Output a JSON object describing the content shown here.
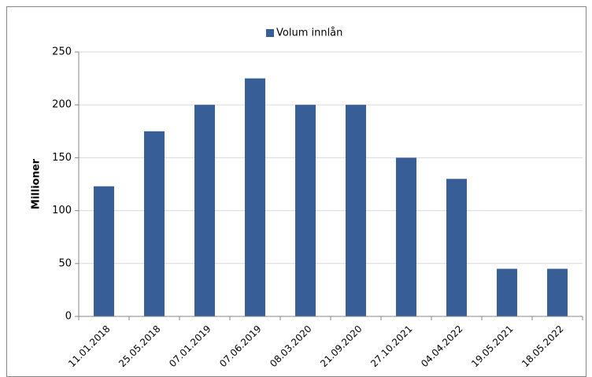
{
  "chart_data": {
    "type": "bar",
    "y_label": "Millioner",
    "categories": [
      "11.01.2018",
      "25.05.2018",
      "07.01.2019",
      "07.06.2019",
      "08.03.2020",
      "21.09.2020",
      "27.10.2021",
      "04.04.2022",
      "19.05.2021",
      "18.05.2022"
    ],
    "series": [
      {
        "name": "Volum innlån",
        "color": "#375e97",
        "values": [
          123,
          175,
          200,
          225,
          200,
          200,
          150,
          130,
          45,
          45
        ]
      }
    ],
    "ylim": [
      0,
      250
    ],
    "yticks": [
      0,
      50,
      100,
      150,
      200,
      250
    ],
    "grid": true,
    "legend": "top"
  }
}
